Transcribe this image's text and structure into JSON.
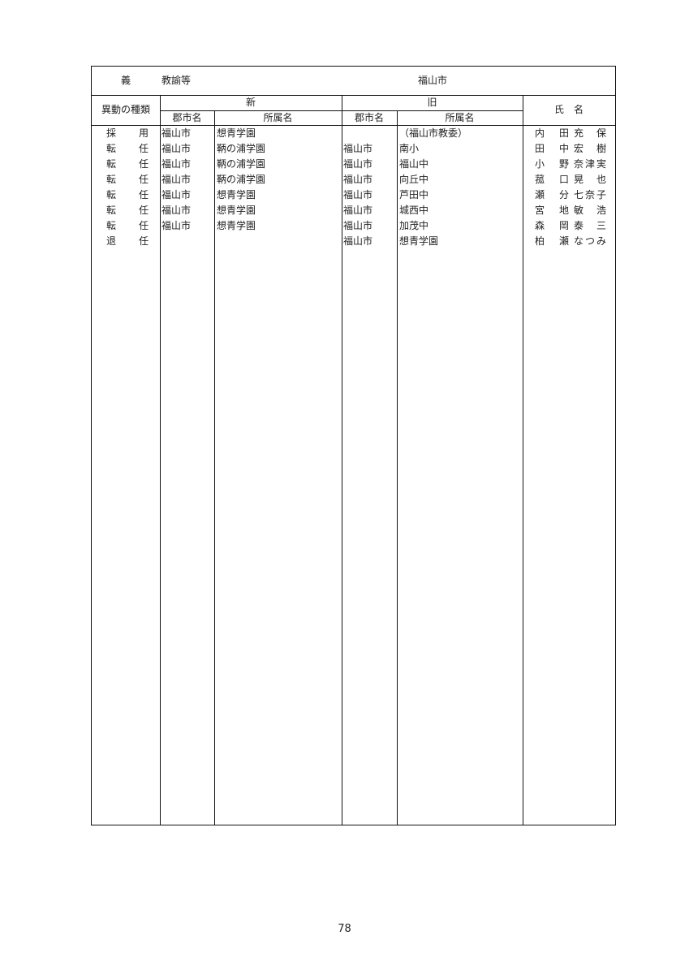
{
  "title_row": {
    "category": "義",
    "position": "教諭等",
    "city": "福山市"
  },
  "headers": {
    "type": "異動の種類",
    "new": "新",
    "old": "旧",
    "district": "郡市名",
    "affiliation": "所属名",
    "name": "氏　名"
  },
  "rows": [
    {
      "type": "採　用",
      "new_district": "福山市",
      "new_affiliation": "想青学園",
      "old_district": "",
      "old_affiliation": "（福山市教委）",
      "family": "内田",
      "given": "充保"
    },
    {
      "type": "転　任",
      "new_district": "福山市",
      "new_affiliation": "鞆の浦学園",
      "old_district": "福山市",
      "old_affiliation": "南小",
      "family": "田中",
      "given": "宏樹"
    },
    {
      "type": "転　任",
      "new_district": "福山市",
      "new_affiliation": "鞆の浦学園",
      "old_district": "福山市",
      "old_affiliation": "福山中",
      "family": "小野",
      "given": "奈津実"
    },
    {
      "type": "転　任",
      "new_district": "福山市",
      "new_affiliation": "鞆の浦学園",
      "old_district": "福山市",
      "old_affiliation": "向丘中",
      "family": "菰口",
      "given": "晃也"
    },
    {
      "type": "転　任",
      "new_district": "福山市",
      "new_affiliation": "想青学園",
      "old_district": "福山市",
      "old_affiliation": "芦田中",
      "family": "瀬分",
      "given": "七奈子"
    },
    {
      "type": "転　任",
      "new_district": "福山市",
      "new_affiliation": "想青学園",
      "old_district": "福山市",
      "old_affiliation": "城西中",
      "family": "宮地",
      "given": "敏浩"
    },
    {
      "type": "転　任",
      "new_district": "福山市",
      "new_affiliation": "想青学園",
      "old_district": "福山市",
      "old_affiliation": "加茂中",
      "family": "森岡",
      "given": "泰三"
    },
    {
      "type": "退　任",
      "new_district": "",
      "new_affiliation": "",
      "old_district": "福山市",
      "old_affiliation": "想青学園",
      "family": "柏瀬",
      "given": "なつみ"
    }
  ],
  "page_number": "78"
}
